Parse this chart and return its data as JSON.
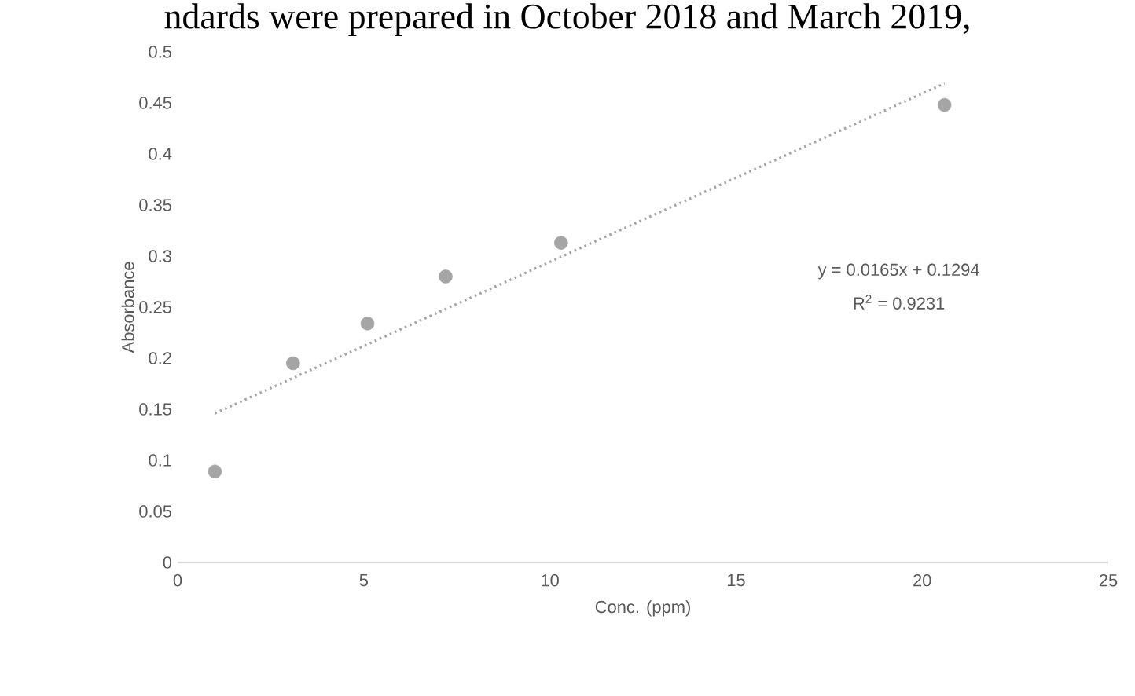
{
  "chart_data": {
    "type": "scatter",
    "xlabel": "Conc. (ppm)",
    "ylabel": "Absorbance",
    "x": [
      1,
      3.1,
      5.1,
      7.2,
      10.3,
      20.6
    ],
    "series": [
      {
        "color": "#a5a5a5",
        "marker": "circle",
        "values": [
          0.089,
          0.195,
          0.234,
          0.28,
          0.313,
          0.448
        ]
      },
      {
        "type": "line",
        "color": "#a5a5a5",
        "line_style": "dotted",
        "marker": "none",
        "x": [
          1,
          20.6
        ],
        "values": [
          0.146,
          0.469
        ]
      }
    ],
    "xlim": [
      0,
      25
    ],
    "xticks": [
      0,
      5,
      10,
      15,
      20,
      25
    ],
    "ylim": [
      0,
      0.5
    ],
    "yticks": [
      0,
      0.05,
      0.1,
      0.15,
      0.2,
      0.25,
      0.3,
      0.35,
      0.4,
      0.45,
      0.5
    ],
    "grid": false,
    "annotations": [
      "ndards were prepared in October 2018 and March 2019,",
      "y = 0.0165x + 0.1294",
      "R$^{2}$ = 0.9231"
    ]
  }
}
